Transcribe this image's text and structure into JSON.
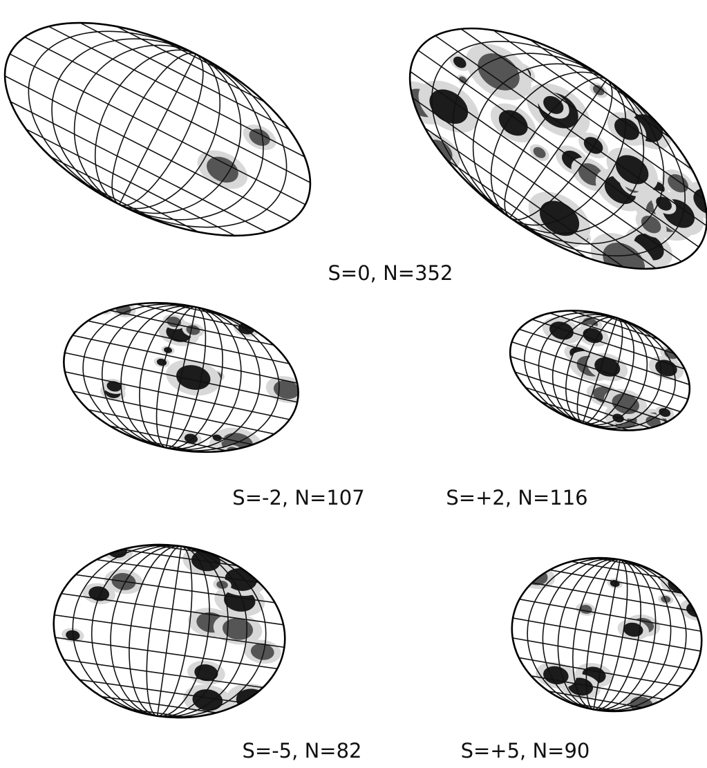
{
  "figure": {
    "panels": [
      {
        "label": "S=0, N=352"
      },
      {
        "label": "S=-2, N=107"
      },
      {
        "label": "S=+2, N=116"
      },
      {
        "label": "S=-5, N=82"
      },
      {
        "label": "S=+5, N=90"
      }
    ]
  }
}
